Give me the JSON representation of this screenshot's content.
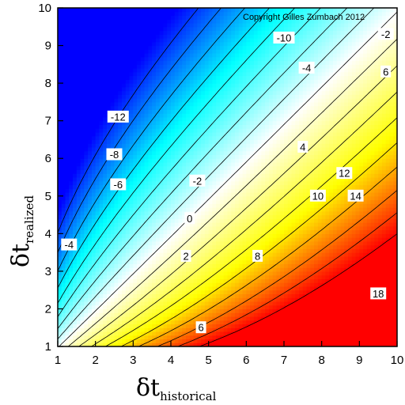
{
  "chart_data": {
    "type": "heatmap",
    "subtype": "filled-contour",
    "copyright": "Copyright Gilles Zumbach 2012",
    "xlabel": {
      "main": "δt",
      "sub": "historical"
    },
    "ylabel": {
      "main": "δt",
      "sub": "realized"
    },
    "xlim": [
      1,
      10
    ],
    "ylim": [
      1,
      10
    ],
    "x_ticks": [
      "1",
      "2",
      "3",
      "4",
      "5",
      "6",
      "7",
      "8",
      "9",
      "10"
    ],
    "y_ticks": [
      "1",
      "2",
      "3",
      "4",
      "5",
      "6",
      "7",
      "8",
      "9",
      "10"
    ],
    "grid": false,
    "colormap": [
      "#0000ff",
      "#00ffff",
      "#ffffff",
      "#ffff00",
      "#ff0000"
    ],
    "contour_levels": [
      -16,
      -14,
      -12,
      -10,
      -8,
      -6,
      -4,
      -2,
      0,
      2,
      4,
      6,
      8,
      10,
      12,
      14,
      16,
      18
    ],
    "z_range": [
      -18,
      18
    ],
    "contour_labels": [
      {
        "text": "-10",
        "x": 7.0,
        "y": 9.2
      },
      {
        "text": "-4",
        "x": 7.6,
        "y": 8.4
      },
      {
        "text": "-2",
        "x": 9.7,
        "y": 9.3
      },
      {
        "text": "6",
        "x": 9.7,
        "y": 8.3
      },
      {
        "text": "-12",
        "x": 2.6,
        "y": 7.1
      },
      {
        "text": "-8",
        "x": 2.5,
        "y": 6.1
      },
      {
        "text": "-6",
        "x": 2.6,
        "y": 5.3
      },
      {
        "text": "-4",
        "x": 1.3,
        "y": 3.7
      },
      {
        "text": "-2",
        "x": 4.7,
        "y": 5.4
      },
      {
        "text": "0",
        "x": 4.5,
        "y": 4.4
      },
      {
        "text": "2",
        "x": 4.4,
        "y": 3.4
      },
      {
        "text": "4",
        "x": 7.5,
        "y": 6.3
      },
      {
        "text": "10",
        "x": 7.9,
        "y": 5.0
      },
      {
        "text": "12",
        "x": 8.6,
        "y": 5.6
      },
      {
        "text": "14",
        "x": 8.9,
        "y": 5.0
      },
      {
        "text": "8",
        "x": 6.3,
        "y": 3.4
      },
      {
        "text": "6",
        "x": 4.8,
        "y": 1.5
      },
      {
        "text": "18",
        "x": 9.5,
        "y": 2.4
      }
    ]
  }
}
